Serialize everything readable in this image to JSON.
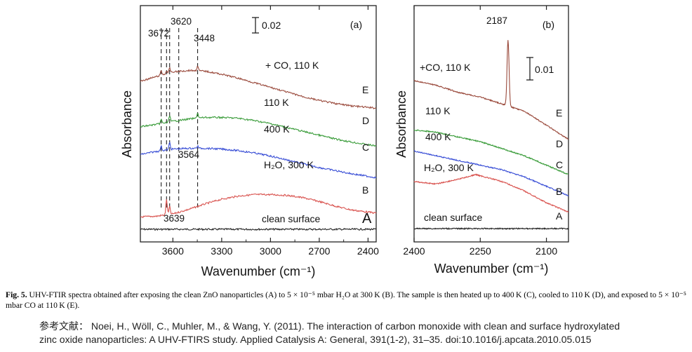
{
  "chart_data": [
    {
      "id": "a",
      "type": "line",
      "panel_label": "(a)",
      "xlabel": "Wavenumber (cm⁻¹)",
      "ylabel": "Absorbance",
      "xlim": [
        3800,
        2350
      ],
      "x_ticks": [
        3600,
        3300,
        3000,
        2700,
        2400
      ],
      "scale_bar": "0.02",
      "peak_labels": [
        {
          "text": "3672",
          "x": 3672
        },
        {
          "text": "3620",
          "x": 3620
        },
        {
          "text": "3448",
          "x": 3448
        },
        {
          "text": "3564",
          "x": 3564
        },
        {
          "text": "3639",
          "x": 3639
        }
      ],
      "dashed_lines_x": [
        3672,
        3639,
        3620,
        3564,
        3448
      ],
      "series": [
        {
          "letter": "A",
          "name": "clean surface",
          "color": "#222222",
          "x": [
            3800,
            3500,
            3200,
            2900,
            2600,
            2350
          ],
          "y": [
            0.0,
            0.0,
            0.0,
            0.0,
            0.0,
            0.0
          ],
          "peaks": []
        },
        {
          "letter": "B",
          "name": "H₂O, 300 K",
          "color": "#d9534f",
          "x": [
            3800,
            3700,
            3600,
            3500,
            3400,
            3300,
            3200,
            3100,
            3000,
            2900,
            2800,
            2700,
            2600,
            2500,
            2350
          ],
          "y": [
            0.016,
            0.017,
            0.02,
            0.026,
            0.033,
            0.039,
            0.043,
            0.045,
            0.045,
            0.044,
            0.041,
            0.036,
            0.03,
            0.025,
            0.021
          ],
          "peaks": [
            {
              "x": 3639,
              "h": 0.02
            },
            {
              "x": 3620,
              "h": 0.01
            }
          ]
        },
        {
          "letter": "C",
          "name": "400 K",
          "color": "#3a4fd6",
          "x": [
            3800,
            3700,
            3600,
            3500,
            3400,
            3300,
            3200,
            3100,
            3000,
            2900,
            2800,
            2700,
            2600,
            2500,
            2350
          ],
          "y": [
            0.097,
            0.101,
            0.104,
            0.105,
            0.105,
            0.104,
            0.102,
            0.099,
            0.095,
            0.09,
            0.085,
            0.08,
            0.076,
            0.072,
            0.067
          ],
          "peaks": [
            {
              "x": 3672,
              "h": 0.006
            },
            {
              "x": 3620,
              "h": 0.009
            },
            {
              "x": 3448,
              "h": 0.003
            }
          ]
        },
        {
          "letter": "D",
          "name": "110 K",
          "color": "#3a9c3a",
          "x": [
            3800,
            3700,
            3600,
            3500,
            3400,
            3300,
            3200,
            3100,
            3000,
            2900,
            2800,
            2700,
            2600,
            2500,
            2350
          ],
          "y": [
            0.133,
            0.136,
            0.14,
            0.143,
            0.145,
            0.145,
            0.144,
            0.141,
            0.137,
            0.132,
            0.127,
            0.122,
            0.117,
            0.113,
            0.108
          ],
          "peaks": [
            {
              "x": 3672,
              "h": 0.005
            },
            {
              "x": 3620,
              "h": 0.009
            },
            {
              "x": 3448,
              "h": 0.007
            }
          ]
        },
        {
          "letter": "E",
          "name": "+ CO, 110 K",
          "color": "#9a4a3c",
          "x": [
            3800,
            3700,
            3600,
            3500,
            3400,
            3300,
            3200,
            3100,
            3000,
            2900,
            2800,
            2700,
            2600,
            2500,
            2350
          ],
          "y": [
            0.192,
            0.198,
            0.204,
            0.206,
            0.205,
            0.201,
            0.196,
            0.19,
            0.184,
            0.178,
            0.172,
            0.167,
            0.163,
            0.16,
            0.157
          ],
          "peaks": [
            {
              "x": 3672,
              "h": 0.006
            },
            {
              "x": 3639,
              "h": 0.004
            },
            {
              "x": 3620,
              "h": 0.006
            },
            {
              "x": 3448,
              "h": 0.007
            }
          ]
        }
      ]
    },
    {
      "id": "b",
      "type": "line",
      "panel_label": "(b)",
      "xlabel": "Wavenumber (cm⁻¹)",
      "ylabel": "Absorbance",
      "xlim": [
        2400,
        2050
      ],
      "x_ticks": [
        2400,
        2250,
        2100
      ],
      "scale_bar": "0.01",
      "peak_labels": [
        {
          "text": "2187",
          "x": 2187
        }
      ],
      "series": [
        {
          "letter": "A",
          "name": "clean surface",
          "color": "#222222",
          "x": [
            2400,
            2300,
            2200,
            2100,
            2050
          ],
          "y": [
            0.0,
            0.0,
            0.0,
            0.0,
            0.0
          ],
          "peaks": []
        },
        {
          "letter": "B",
          "name": "H₂O, 300 K",
          "color": "#d9534f",
          "x": [
            2400,
            2350,
            2300,
            2260,
            2200,
            2150,
            2100,
            2050
          ],
          "y": [
            0.02,
            0.019,
            0.021,
            0.023,
            0.02,
            0.016,
            0.011,
            0.007
          ],
          "peaks": []
        },
        {
          "letter": "C",
          "name": "400 K",
          "color": "#3a4fd6",
          "x": [
            2400,
            2350,
            2300,
            2250,
            2200,
            2150,
            2100,
            2050
          ],
          "y": [
            0.033,
            0.031,
            0.029,
            0.027,
            0.025,
            0.022,
            0.018,
            0.014
          ],
          "peaks": []
        },
        {
          "letter": "D",
          "name": "110 K",
          "color": "#3a9c3a",
          "x": [
            2400,
            2350,
            2300,
            2250,
            2200,
            2150,
            2100,
            2050
          ],
          "y": [
            0.042,
            0.041,
            0.039,
            0.037,
            0.034,
            0.031,
            0.027,
            0.023
          ],
          "peaks": []
        },
        {
          "letter": "E",
          "name": "+CO, 110 K",
          "color": "#9a4a3c",
          "x": [
            2400,
            2350,
            2300,
            2250,
            2200,
            2150,
            2100,
            2050
          ],
          "y": [
            0.063,
            0.061,
            0.058,
            0.056,
            0.053,
            0.05,
            0.044,
            0.038
          ],
          "peaks": [
            {
              "x": 2187,
              "h": 0.028
            }
          ]
        }
      ]
    }
  ],
  "caption": {
    "bold": "Fig. 5.",
    "text": " UHV-FTIR spectra obtained after exposing the clean ZnO nanoparticles (A) to 5 × 10⁻⁵ mbar H₂O at 300 K (B). The sample is then heated up to 400 K (C), cooled to 110 K (D), and exposed to 5 × 10⁻⁵ mbar CO at 110 K (E)."
  },
  "reference": {
    "line1": "参考文献： Noei, H., Wöll, C., Muhler, M., & Wang, Y. (2011). The interaction of carbon monoxide with clean and surface hydroxylated",
    "line2": "zinc oxide nanoparticles: A UHV-FTIRS  study. Applied Catalysis A: General, 391(1-2), 31–35. doi:10.1016/j.apcata.2010.05.015"
  }
}
